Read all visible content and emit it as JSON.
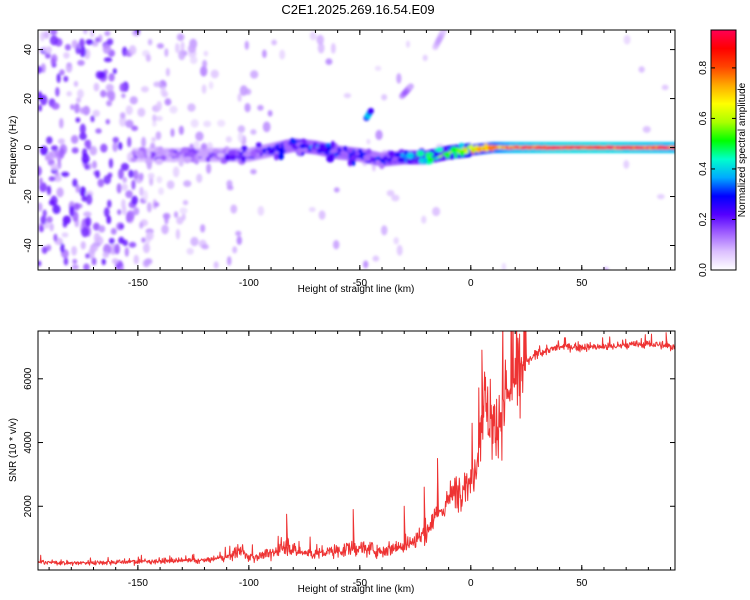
{
  "title": "C2E1.2025.269.16.54.E09",
  "colors": {
    "line": "#ee3333",
    "frame": "#000000",
    "background": "#ffffff"
  },
  "chart_data": [
    {
      "type": "heatmap",
      "xlabel": "Height of straight line (km)",
      "ylabel": "Frequency (Hz)",
      "xlim": [
        -195,
        92
      ],
      "ylim": [
        -50,
        48
      ],
      "x_ticks": [
        "-150",
        "-100",
        "-50",
        "0",
        "50"
      ],
      "x_tick_values": [
        -150,
        -100,
        -50,
        0,
        50
      ],
      "y_ticks": [
        "-40",
        "-20",
        "0",
        "20",
        "40"
      ],
      "y_tick_values": [
        -40,
        -20,
        0,
        20,
        40
      ],
      "colorbar": {
        "label": "Normalized spectral amplitude",
        "range": [
          0,
          0.95
        ],
        "ticks": [
          "0.0",
          "0.2",
          "0.4",
          "0.6",
          "0.8"
        ],
        "tick_values": [
          0.0,
          0.2,
          0.4,
          0.6,
          0.8
        ],
        "colormap": [
          "#ffffff",
          "#dcc0ff",
          "#a060ff",
          "#5500ff",
          "#0000ff",
          "#00aaff",
          "#00ffcc",
          "#00ff00",
          "#aaff00",
          "#ffff00",
          "#ffaa00",
          "#ff4400",
          "#ff0000",
          "#ff0055"
        ]
      },
      "ridge": {
        "x": [
          -150,
          -130,
          -110,
          -100,
          -90,
          -80,
          -70,
          -60,
          -50,
          -40,
          -30,
          -20,
          -10,
          0,
          10,
          20,
          40,
          60,
          88
        ],
        "frequency": [
          -3,
          -3,
          -3,
          -3,
          -1,
          1,
          0,
          -2,
          -3,
          -5,
          -4,
          -4,
          -2,
          -1,
          0,
          0,
          0,
          0,
          0
        ],
        "amplitude": [
          0.15,
          0.18,
          0.2,
          0.22,
          0.25,
          0.3,
          0.32,
          0.3,
          0.28,
          0.28,
          0.35,
          0.45,
          0.55,
          0.65,
          0.75,
          0.85,
          0.9,
          0.9,
          0.85
        ]
      },
      "features": [
        {
          "x": [
            -47,
            -45
          ],
          "frequency": [
            12,
            15
          ],
          "amplitude": 0.4
        },
        {
          "x": [
            -31,
            -27
          ],
          "frequency": [
            21,
            25
          ],
          "amplitude": 0.15
        },
        {
          "x": [
            -16,
            -12
          ],
          "frequency": [
            41,
            48
          ],
          "amplitude": 0.1
        }
      ]
    },
    {
      "type": "line",
      "xlabel": "Height of straight line (km)",
      "ylabel": "SNR (10 * v/v)",
      "xlim": [
        -195,
        92
      ],
      "ylim": [
        0,
        7500
      ],
      "x_ticks": [
        "-150",
        "-100",
        "-50",
        "0",
        "50"
      ],
      "x_tick_values": [
        -150,
        -100,
        -50,
        0,
        50
      ],
      "y_ticks": [
        "2000",
        "4000",
        "6000"
      ],
      "y_tick_values": [
        2000,
        4000,
        6000
      ],
      "series": [
        {
          "name": "SNR",
          "x": [
            -195,
            -180,
            -160,
            -140,
            -120,
            -110,
            -104,
            -100,
            -90,
            -82,
            -80,
            -75,
            -70,
            -60,
            -50,
            -40,
            -30,
            -25,
            -20,
            -15,
            -10,
            -5,
            0,
            2,
            4,
            6,
            8,
            10,
            15,
            20,
            25,
            30,
            35,
            40,
            50,
            60,
            70,
            80,
            92
          ],
          "y": [
            250,
            220,
            250,
            280,
            300,
            400,
            600,
            400,
            500,
            800,
            600,
            550,
            500,
            600,
            700,
            600,
            800,
            900,
            1200,
            1700,
            2200,
            2600,
            2800,
            3200,
            4200,
            5500,
            4800,
            4400,
            5200,
            6000,
            6500,
            6800,
            6900,
            7000,
            7000,
            7000,
            7050,
            7100,
            7000
          ]
        }
      ],
      "peaks": {
        "x": [
          -83,
          -53,
          -30,
          -21,
          -15,
          5,
          24,
          88
        ],
        "y": [
          1750,
          1900,
          2000,
          2600,
          3500,
          6900,
          7050,
          7450
        ]
      }
    }
  ]
}
